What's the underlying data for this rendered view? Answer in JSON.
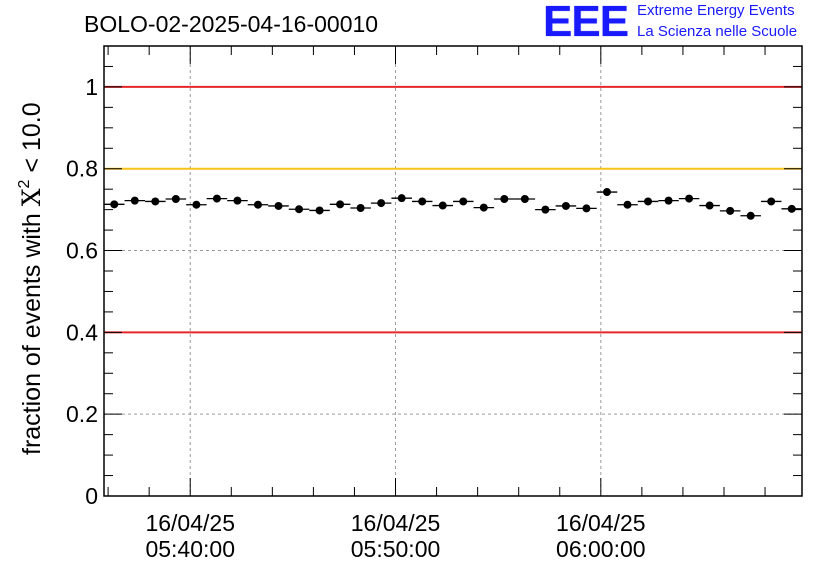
{
  "chart_data": {
    "type": "scatter",
    "title": "BOLO-02-2025-04-16-00010",
    "ylabel_main": "fraction of events with ",
    "ylabel_symbol": "X",
    "ylabel_power": "2",
    "ylabel_tail": " < 10.0",
    "ylim": [
      0,
      1.1
    ],
    "y_ticks": [
      {
        "value": 0,
        "label": "0"
      },
      {
        "value": 0.2,
        "label": "0.2"
      },
      {
        "value": 0.4,
        "label": "0.4"
      },
      {
        "value": 0.6,
        "label": "0.6"
      },
      {
        "value": 0.8,
        "label": "0.8"
      },
      {
        "value": 1.0,
        "label": "1"
      }
    ],
    "x_ticks": [
      {
        "value": 2.0,
        "date": "16/04/25",
        "time": "05:40:00"
      },
      {
        "value": 12.0,
        "date": "16/04/25",
        "time": "05:50:00"
      },
      {
        "value": 22.0,
        "date": "16/04/25",
        "time": "06:00:00"
      }
    ],
    "xlim": [
      -2.2,
      31.8
    ],
    "x_bin_width": 1.0,
    "points": [
      {
        "x": -1.7,
        "y": 0.713
      },
      {
        "x": -0.7,
        "y": 0.722
      },
      {
        "x": 0.3,
        "y": 0.72
      },
      {
        "x": 1.3,
        "y": 0.726
      },
      {
        "x": 2.3,
        "y": 0.712
      },
      {
        "x": 3.3,
        "y": 0.727
      },
      {
        "x": 4.3,
        "y": 0.722
      },
      {
        "x": 5.3,
        "y": 0.712
      },
      {
        "x": 6.3,
        "y": 0.709
      },
      {
        "x": 7.3,
        "y": 0.701
      },
      {
        "x": 8.3,
        "y": 0.698
      },
      {
        "x": 9.3,
        "y": 0.713
      },
      {
        "x": 10.3,
        "y": 0.704
      },
      {
        "x": 11.3,
        "y": 0.716
      },
      {
        "x": 12.3,
        "y": 0.728
      },
      {
        "x": 13.3,
        "y": 0.72
      },
      {
        "x": 14.3,
        "y": 0.71
      },
      {
        "x": 15.3,
        "y": 0.72
      },
      {
        "x": 16.3,
        "y": 0.705
      },
      {
        "x": 17.3,
        "y": 0.726
      },
      {
        "x": 18.3,
        "y": 0.726
      },
      {
        "x": 19.3,
        "y": 0.7
      },
      {
        "x": 20.3,
        "y": 0.709
      },
      {
        "x": 21.3,
        "y": 0.703
      },
      {
        "x": 22.3,
        "y": 0.743
      },
      {
        "x": 23.3,
        "y": 0.712
      },
      {
        "x": 24.3,
        "y": 0.72
      },
      {
        "x": 25.3,
        "y": 0.722
      },
      {
        "x": 26.3,
        "y": 0.727
      },
      {
        "x": 27.3,
        "y": 0.71
      },
      {
        "x": 28.3,
        "y": 0.697
      },
      {
        "x": 29.3,
        "y": 0.685
      },
      {
        "x": 30.3,
        "y": 0.72
      },
      {
        "x": 31.3,
        "y": 0.702
      }
    ],
    "y_error": 0.008,
    "reference_lines": [
      {
        "y": 1.0,
        "color": "#e8262a",
        "name": "upper-red-limit-line"
      },
      {
        "y": 0.8,
        "color": "#f6c21c",
        "name": "yellow-threshold-line"
      },
      {
        "y": 0.4,
        "color": "#e8262a",
        "name": "lower-red-limit-line"
      }
    ],
    "grid": true
  },
  "logo": {
    "letters": "EEE",
    "line1": "Extreme Energy Events",
    "line2": "La Scienza nelle Scuole",
    "color": "#1a1aff"
  }
}
